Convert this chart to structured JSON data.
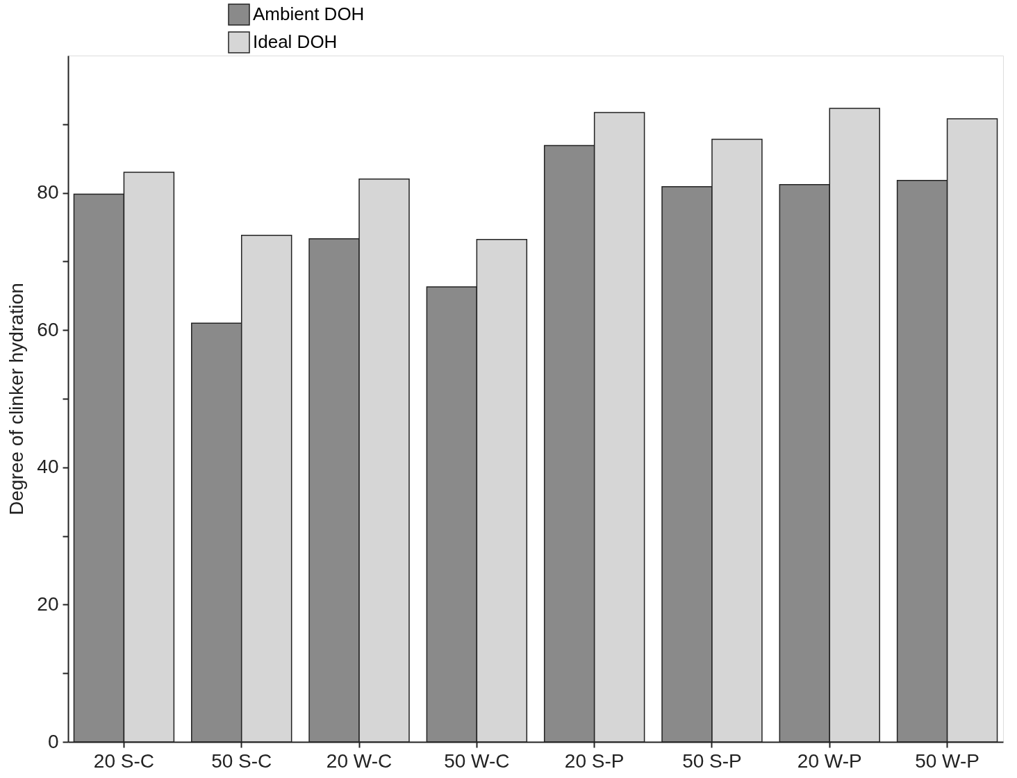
{
  "chart_data": {
    "type": "bar",
    "ylabel": "Degree of clinker hydration",
    "categories": [
      "20 S-C",
      "50 S-C",
      "20 W-C",
      "50 W-C",
      "20 S-P",
      "50 S-P",
      "20 W-P",
      "50 W-P"
    ],
    "series": [
      {
        "name": "Ambient DOH",
        "color": "#8a8a8a",
        "values": [
          79.8,
          61.0,
          73.3,
          66.3,
          86.9,
          80.9,
          81.2,
          81.8
        ]
      },
      {
        "name": "Ideal DOH",
        "color": "#d6d6d6",
        "values": [
          83.0,
          73.8,
          82.0,
          73.2,
          91.7,
          87.8,
          92.3,
          90.8
        ]
      }
    ],
    "ylim": [
      0,
      100
    ],
    "yticks": [
      0,
      {
        "value": 10,
        "label": null
      },
      20,
      {
        "value": 30,
        "label": null
      },
      40,
      {
        "value": 50,
        "label": null
      },
      60,
      {
        "value": 70,
        "label": null
      },
      80,
      {
        "value": 90,
        "label": null
      }
    ],
    "grid": false,
    "legend": "top left"
  }
}
